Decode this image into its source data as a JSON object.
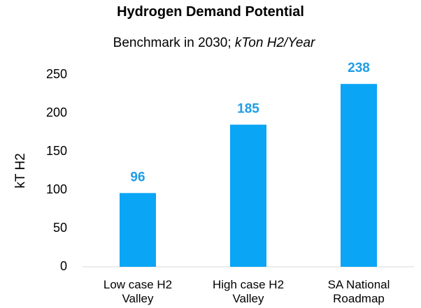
{
  "chart_data": {
    "type": "bar",
    "title": "Hydrogen Demand Potential",
    "subtitle": "Benchmark in 2030;",
    "subtitle_italic": "kTon H2/Year",
    "y_label": "kT H2",
    "categories": [
      "Low case H2 Valley",
      "High case H2 Valley",
      "SA National Roadmap"
    ],
    "values": [
      96,
      185,
      238
    ],
    "color": "#0aa5f5",
    "label_color": "#1e9de6",
    "ylim": [
      0,
      250
    ],
    "yticks": [
      0,
      50,
      100,
      150,
      200,
      250
    ],
    "grid": false
  }
}
